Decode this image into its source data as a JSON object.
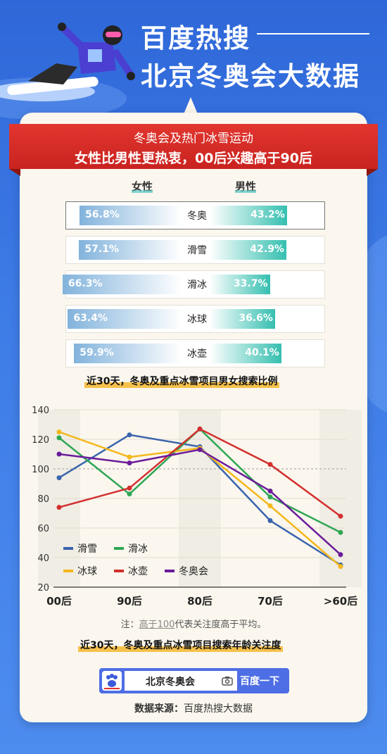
{
  "header": {
    "line1": "百度热搜",
    "line2": "北京冬奥会大数据"
  },
  "banner": {
    "line1": "冬奥会及热门冰雪运动",
    "line2": "女性比男性更热衷，00后兴趣高于90后"
  },
  "gender": {
    "female_label": "女性",
    "male_label": "男性",
    "rows": [
      {
        "sport": "冬奥",
        "female": "56.8%",
        "male": "43.2%",
        "female_value": 56.8,
        "male_value": 43.2
      },
      {
        "sport": "滑雪",
        "female": "57.1%",
        "male": "42.9%",
        "female_value": 57.1,
        "male_value": 42.9
      },
      {
        "sport": "滑冰",
        "female": "66.3%",
        "male": "33.7%",
        "female_value": 66.3,
        "male_value": 33.7
      },
      {
        "sport": "冰球",
        "female": "63.4%",
        "male": "36.6%",
        "female_value": 63.4,
        "male_value": 36.6
      },
      {
        "sport": "冰壶",
        "female": "59.9%",
        "male": "40.1%",
        "female_value": 59.9,
        "male_value": 40.1
      }
    ],
    "caption": "近30天，冬奥及重点冰雪项目男女搜索比例"
  },
  "chart_data": {
    "type": "line",
    "categories": [
      "00后",
      "90后",
      "80后",
      "70后",
      ">60后"
    ],
    "ylim": [
      20,
      140
    ],
    "yticks": [
      "20",
      "40",
      "60",
      "80",
      "100",
      "120",
      "140"
    ],
    "reference_line": 100,
    "series": [
      {
        "name": "滑雪",
        "color": "#3a64ad",
        "values": [
          94,
          123,
          115,
          65,
          35
        ]
      },
      {
        "name": "滑冰",
        "color": "#2fa654",
        "values": [
          121,
          83,
          127,
          81,
          57
        ]
      },
      {
        "name": "冰球",
        "color": "#f4b81c",
        "values": [
          125,
          108,
          114,
          75,
          34
        ]
      },
      {
        "name": "冰壶",
        "color": "#d32f2f",
        "values": [
          74,
          87,
          127,
          103,
          68
        ]
      },
      {
        "name": "冬奥会",
        "color": "#6a1b9a",
        "values": [
          110,
          104,
          113,
          85,
          42
        ]
      }
    ],
    "legend_position": "bottom-left"
  },
  "note": {
    "prefix": "注：",
    "underlined": "高于100",
    "rest": "代表关注度高于平均。"
  },
  "age_caption": "近30天，冬奥及重点冰雪项目搜索年龄关注度",
  "search": {
    "query": "北京冬奥会",
    "button": "百度一下"
  },
  "source": {
    "label": "数据来源：",
    "value": "百度热搜大数据"
  },
  "colors": {
    "banner_red": "#d62b26",
    "female_bar": "#82b3dc",
    "male_bar": "#35bfb0",
    "baidu_blue": "#4e6ee5"
  }
}
